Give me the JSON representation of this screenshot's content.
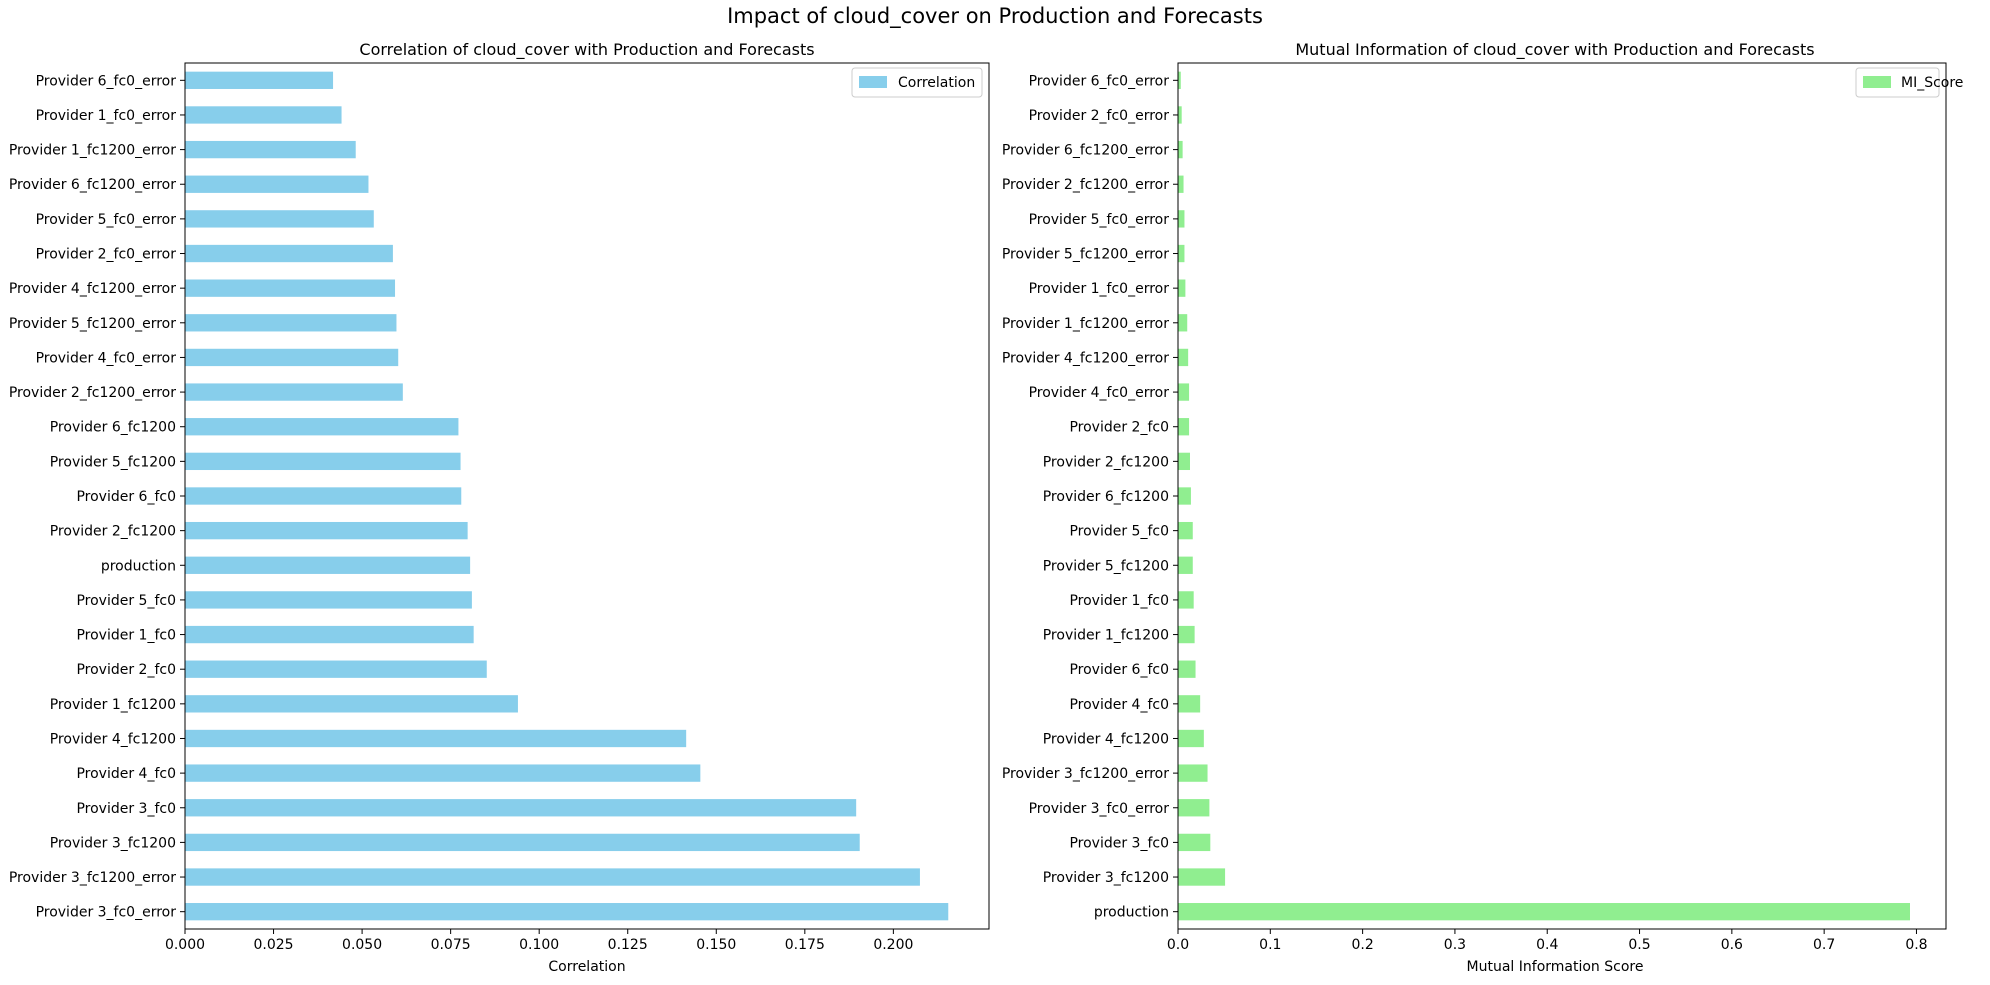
{
  "figure": {
    "title": "Impact of cloud_cover on Production and Forecasts"
  },
  "chart_data": [
    {
      "type": "bar",
      "orientation": "horizontal",
      "title": "Correlation of cloud_cover with Production and Forecasts",
      "xlabel": "Correlation",
      "ylabel": "",
      "xlim": [
        0,
        0.227
      ],
      "xticks": [
        0.0,
        0.025,
        0.05,
        0.075,
        0.1,
        0.125,
        0.15,
        0.175,
        0.2
      ],
      "xtick_labels": [
        "0.000",
        "0.025",
        "0.050",
        "0.075",
        "0.100",
        "0.125",
        "0.150",
        "0.175",
        "0.200"
      ],
      "color": "#87CEEB",
      "grid": false,
      "legend_placement": "top-right",
      "series": [
        {
          "name": "Correlation"
        }
      ],
      "categories": [
        "Provider 3_fc0_error",
        "Provider 3_fc1200_error",
        "Provider 3_fc1200",
        "Provider 3_fc0",
        "Provider 4_fc0",
        "Provider 4_fc1200",
        "Provider 1_fc1200",
        "Provider 2_fc0",
        "Provider 1_fc0",
        "Provider 5_fc0",
        "production",
        "Provider 2_fc1200",
        "Provider 6_fc0",
        "Provider 5_fc1200",
        "Provider 6_fc1200",
        "Provider 2_fc1200_error",
        "Provider 4_fc0_error",
        "Provider 5_fc1200_error",
        "Provider 4_fc1200_error",
        "Provider 2_fc0_error",
        "Provider 5_fc0_error",
        "Provider 6_fc1200_error",
        "Provider 1_fc1200_error",
        "Provider 1_fc0_error",
        "Provider 6_fc0_error"
      ],
      "values": [
        0.2155,
        0.2075,
        0.1905,
        0.1895,
        0.1455,
        0.1415,
        0.094,
        0.0852,
        0.0815,
        0.081,
        0.0805,
        0.0798,
        0.078,
        0.0778,
        0.0772,
        0.0615,
        0.0602,
        0.0597,
        0.0593,
        0.0587,
        0.0533,
        0.0518,
        0.0482,
        0.0442,
        0.0418
      ]
    },
    {
      "type": "bar",
      "orientation": "horizontal",
      "title": "Mutual Information of cloud_cover with Production and Forecasts",
      "xlabel": "Mutual Information Score",
      "ylabel": "",
      "xlim": [
        0,
        0.832
      ],
      "xticks": [
        0.0,
        0.1,
        0.2,
        0.3,
        0.4,
        0.5,
        0.6,
        0.7,
        0.8
      ],
      "xtick_labels": [
        "0.0",
        "0.1",
        "0.2",
        "0.3",
        "0.4",
        "0.5",
        "0.6",
        "0.7",
        "0.8"
      ],
      "color": "#90EE90",
      "grid": false,
      "legend_placement": "top-right",
      "series": [
        {
          "name": "MI_Score"
        }
      ],
      "categories": [
        "production",
        "Provider 3_fc1200",
        "Provider 3_fc0",
        "Provider 3_fc0_error",
        "Provider 3_fc1200_error",
        "Provider 4_fc1200",
        "Provider 4_fc0",
        "Provider 6_fc0",
        "Provider 1_fc1200",
        "Provider 1_fc0",
        "Provider 5_fc1200",
        "Provider 5_fc0",
        "Provider 6_fc1200",
        "Provider 2_fc1200",
        "Provider 2_fc0",
        "Provider 4_fc0_error",
        "Provider 4_fc1200_error",
        "Provider 1_fc1200_error",
        "Provider 1_fc0_error",
        "Provider 5_fc1200_error",
        "Provider 5_fc0_error",
        "Provider 2_fc1200_error",
        "Provider 6_fc1200_error",
        "Provider 2_fc0_error",
        "Provider 6_fc0_error"
      ],
      "values": [
        0.793,
        0.051,
        0.035,
        0.034,
        0.032,
        0.028,
        0.024,
        0.019,
        0.018,
        0.017,
        0.016,
        0.016,
        0.014,
        0.013,
        0.012,
        0.012,
        0.011,
        0.01,
        0.008,
        0.007,
        0.007,
        0.006,
        0.005,
        0.004,
        0.003
      ]
    }
  ]
}
